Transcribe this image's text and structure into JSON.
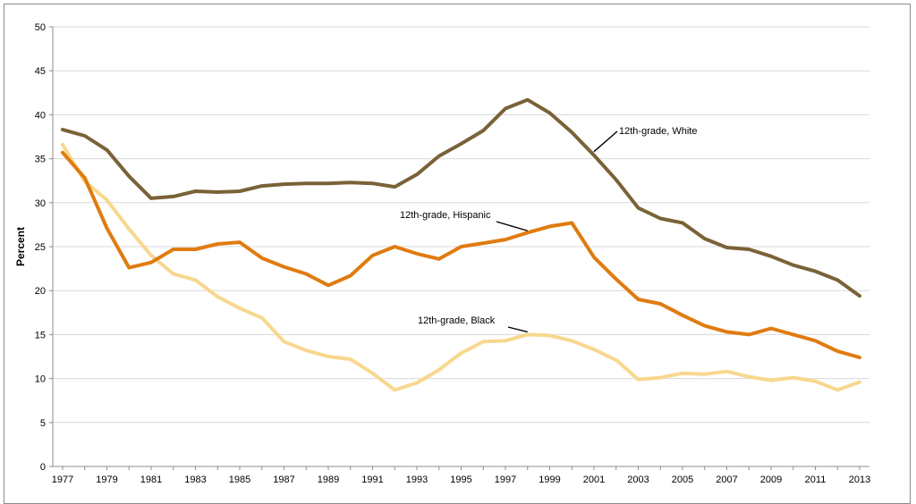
{
  "chart_data": {
    "type": "line",
    "title": "",
    "xlabel": "",
    "ylabel": "Percent",
    "ylim": [
      0,
      50
    ],
    "yticks": [
      "0",
      "5",
      "10",
      "15",
      "20",
      "25",
      "30",
      "35",
      "40",
      "45",
      "50"
    ],
    "xlim": [
      1977,
      2013
    ],
    "xticks": [
      "1977",
      "1979",
      "1981",
      "1983",
      "1985",
      "1987",
      "1989",
      "1991",
      "1993",
      "1995",
      "1997",
      "1999",
      "2001",
      "2003",
      "2005",
      "2007",
      "2009",
      "2011",
      "2013"
    ],
    "grid": true,
    "x": [
      1977,
      1978,
      1979,
      1980,
      1981,
      1982,
      1983,
      1984,
      1985,
      1986,
      1987,
      1988,
      1989,
      1990,
      1991,
      1992,
      1993,
      1994,
      1995,
      1996,
      1997,
      1998,
      1999,
      2000,
      2001,
      2002,
      2003,
      2004,
      2005,
      2006,
      2007,
      2008,
      2009,
      2010,
      2011,
      2012,
      2013
    ],
    "series": [
      {
        "name": "12th-grade, White",
        "label": "12th-grade, White",
        "color": "#7a6238",
        "values": [
          38.3,
          37.6,
          36.0,
          33.0,
          30.5,
          30.7,
          31.3,
          31.2,
          31.3,
          31.9,
          32.1,
          32.2,
          32.2,
          32.3,
          32.2,
          31.8,
          33.2,
          35.3,
          36.7,
          38.2,
          40.7,
          41.7,
          40.2,
          38.0,
          35.4,
          32.6,
          29.4,
          28.2,
          27.7,
          25.9,
          24.9,
          24.7,
          23.9,
          22.9,
          22.2,
          21.2,
          19.4
        ]
      },
      {
        "name": "12th-grade, Hispanic",
        "label": "12th-grade, Hispanic",
        "color": "#e07b0f",
        "values": [
          35.7,
          32.8,
          27.1,
          22.6,
          23.2,
          24.7,
          24.7,
          25.3,
          25.5,
          23.7,
          22.7,
          21.9,
          20.6,
          21.7,
          24.0,
          25.0,
          24.2,
          23.6,
          25.0,
          25.4,
          25.8,
          26.6,
          27.3,
          27.7,
          23.8,
          21.3,
          19.0,
          18.5,
          17.2,
          16.0,
          15.3,
          15.0,
          15.7,
          15.0,
          14.3,
          13.1,
          12.4
        ]
      },
      {
        "name": "12th-grade, Black",
        "label": "12th-grade, Black",
        "color": "#f8d78e",
        "values": [
          36.6,
          32.4,
          30.3,
          27.0,
          24.0,
          21.9,
          21.2,
          19.3,
          18.0,
          16.9,
          14.2,
          13.2,
          12.5,
          12.2,
          10.6,
          8.7,
          9.5,
          11.0,
          12.9,
          14.2,
          14.3,
          15.0,
          14.9,
          14.3,
          13.3,
          12.1,
          9.9,
          10.1,
          10.6,
          10.5,
          10.8,
          10.2,
          9.8,
          10.1,
          9.7,
          8.7,
          9.6
        ]
      }
    ]
  }
}
